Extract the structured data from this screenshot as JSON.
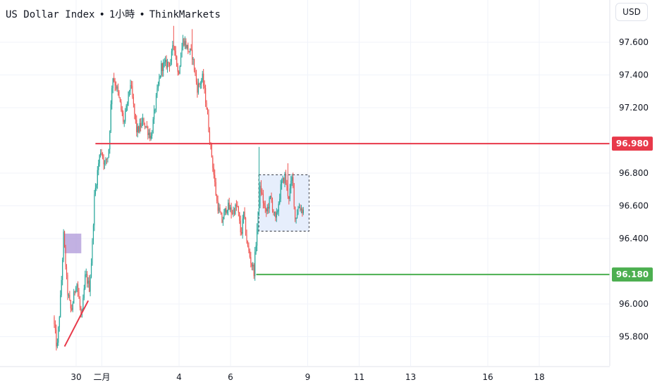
{
  "header": {
    "symbol": "US Dollar Index",
    "interval": "1小時",
    "source": "ThinkMarkets",
    "separator": "•"
  },
  "currency_button": "USD",
  "colors": {
    "up": "#26a69a",
    "down": "#ef5350",
    "resistance": "#e8394a",
    "support": "#4caf50",
    "range_box": "#dde8fb",
    "order_block": "#b39ddb"
  },
  "chart_data": {
    "type": "candlestick",
    "ylim": [
      95.7,
      97.8
    ],
    "y_ticks": [
      {
        "value": 97.6,
        "label": "97.600"
      },
      {
        "value": 97.4,
        "label": "97.400"
      },
      {
        "value": 97.2,
        "label": "97.200"
      },
      {
        "value": 96.8,
        "label": "96.800"
      },
      {
        "value": 96.6,
        "label": "96.600"
      },
      {
        "value": 96.4,
        "label": "96.400"
      },
      {
        "value": 96.0,
        "label": "96.000"
      },
      {
        "value": 95.8,
        "label": "95.800"
      }
    ],
    "x_ticks": [
      {
        "day": 0,
        "label": "30"
      },
      {
        "day": 1,
        "label": "二月"
      },
      {
        "day": 4,
        "label": "4"
      },
      {
        "day": 6,
        "label": "6"
      },
      {
        "day": 9,
        "label": "9"
      },
      {
        "day": 11,
        "label": "11"
      },
      {
        "day": 13,
        "label": "13"
      },
      {
        "day": 16,
        "label": "16"
      },
      {
        "day": 18,
        "label": "18"
      }
    ],
    "anchors": [
      [
        -0.85,
        95.92
      ],
      [
        -0.7,
        95.72
      ],
      [
        -0.55,
        96.08
      ],
      [
        -0.45,
        96.42
      ],
      [
        -0.3,
        96.08
      ],
      [
        -0.15,
        95.95
      ],
      [
        0.05,
        96.15
      ],
      [
        0.25,
        95.9
      ],
      [
        0.4,
        96.18
      ],
      [
        0.55,
        96.1
      ],
      [
        0.65,
        96.3
      ],
      [
        0.75,
        96.65
      ],
      [
        0.9,
        96.85
      ],
      [
        1.0,
        96.95
      ],
      [
        1.15,
        96.85
      ],
      [
        1.3,
        96.92
      ],
      [
        1.45,
        97.4
      ],
      [
        1.65,
        97.3
      ],
      [
        1.9,
        97.1
      ],
      [
        2.15,
        97.35
      ],
      [
        2.4,
        97.05
      ],
      [
        2.65,
        97.12
      ],
      [
        2.95,
        97.02
      ],
      [
        3.15,
        97.25
      ],
      [
        3.35,
        97.45
      ],
      [
        3.7,
        97.48
      ],
      [
        3.85,
        97.6
      ],
      [
        4.0,
        97.4
      ],
      [
        4.2,
        97.62
      ],
      [
        4.4,
        97.55
      ],
      [
        4.55,
        97.52
      ],
      [
        4.75,
        97.32
      ],
      [
        4.95,
        97.38
      ],
      [
        5.1,
        97.22
      ],
      [
        5.25,
        96.98
      ],
      [
        5.35,
        96.85
      ],
      [
        5.5,
        96.63
      ],
      [
        5.7,
        96.5
      ],
      [
        5.9,
        96.6
      ],
      [
        6.1,
        96.56
      ],
      [
        6.3,
        96.6
      ],
      [
        6.45,
        96.42
      ],
      [
        6.55,
        96.55
      ],
      [
        6.7,
        96.35
      ],
      [
        6.85,
        96.25
      ],
      [
        6.95,
        96.2
      ],
      [
        7.05,
        96.42
      ],
      [
        7.2,
        96.72
      ],
      [
        7.4,
        96.55
      ],
      [
        7.6,
        96.65
      ],
      [
        7.8,
        96.5
      ],
      [
        8.0,
        96.72
      ],
      [
        8.15,
        96.78
      ],
      [
        8.3,
        96.65
      ],
      [
        8.45,
        96.78
      ],
      [
        8.55,
        96.52
      ],
      [
        8.7,
        96.6
      ],
      [
        8.85,
        96.57
      ]
    ],
    "spikes": [
      {
        "x": 3.8,
        "high": 97.7
      },
      {
        "x": 4.5,
        "high": 97.68
      },
      {
        "x": 7.1,
        "high": 96.96
      },
      {
        "x": 8.25,
        "high": 96.86
      },
      {
        "x": 5.28,
        "low": 96.9
      }
    ],
    "levels": [
      {
        "name": "resistance",
        "value": 96.98,
        "label": "96.980",
        "from_day": 0.75
      },
      {
        "name": "support",
        "value": 96.18,
        "label": "96.180",
        "from_day": 7.0
      }
    ],
    "range_box": {
      "x0": 7.1,
      "x1": 9.05,
      "y0": 96.445,
      "y1": 96.79
    },
    "order_block": {
      "x0": -0.45,
      "x1": 0.2,
      "y0": 96.31,
      "y1": 96.43
    },
    "trendline": {
      "x0": -0.45,
      "y0": 95.74,
      "x1": 0.47,
      "y1": 96.02
    }
  }
}
